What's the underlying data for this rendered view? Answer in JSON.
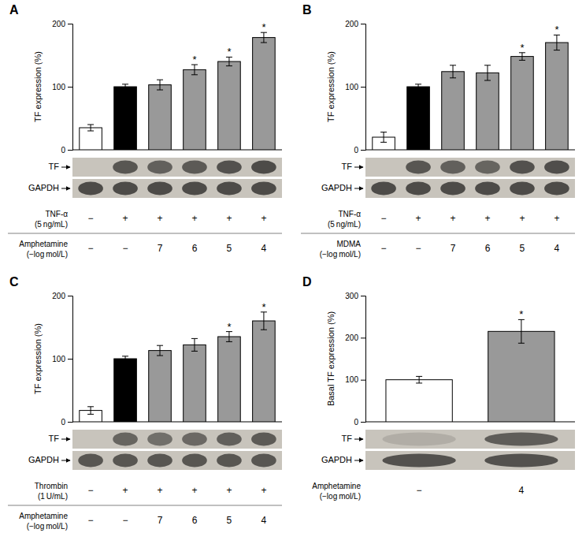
{
  "chart_data": [
    {
      "type": "bar",
      "title": "A",
      "ylabel": "TF expression (%)",
      "values": [
        35,
        100,
        103,
        127,
        140,
        178
      ],
      "errors": [
        5,
        4,
        8,
        8,
        7,
        8
      ],
      "colors": [
        "white",
        "black",
        "#999999",
        "#999999",
        "#999999",
        "#999999"
      ],
      "ylim": [
        0,
        200
      ],
      "yticks": [
        0,
        100,
        200
      ],
      "annotations": [
        null,
        null,
        null,
        "*",
        "*",
        "*"
      ],
      "rows": [
        {
          "label": [
            "TNF-α",
            "(5 ng/mL)"
          ],
          "values": [
            "−",
            "+",
            "+",
            "+",
            "+",
            "+"
          ]
        },
        {
          "label": [
            "Amphetamine",
            "(−log mol/L)"
          ],
          "values": [
            "−",
            "−",
            "7",
            "6",
            "5",
            "4"
          ]
        }
      ],
      "blots": [
        {
          "name": "TF",
          "intensities": [
            0.0,
            0.75,
            0.68,
            0.72,
            0.78,
            0.82
          ]
        },
        {
          "name": "GAPDH",
          "intensities": [
            0.82,
            0.82,
            0.82,
            0.82,
            0.82,
            0.82
          ]
        }
      ]
    },
    {
      "type": "bar",
      "title": "B",
      "ylabel": "TF expression (%)",
      "values": [
        20,
        100,
        124,
        122,
        148,
        170
      ],
      "errors": [
        8,
        4,
        10,
        12,
        6,
        12
      ],
      "colors": [
        "white",
        "black",
        "#999999",
        "#999999",
        "#999999",
        "#999999"
      ],
      "ylim": [
        0,
        200
      ],
      "yticks": [
        0,
        100,
        200
      ],
      "annotations": [
        null,
        null,
        null,
        null,
        "*",
        "*"
      ],
      "rows": [
        {
          "label": [
            "TNF-α",
            "(5 ng/mL)"
          ],
          "values": [
            "−",
            "+",
            "+",
            "+",
            "+",
            "+"
          ]
        },
        {
          "label": [
            "MDMA",
            "(−log mol/L)"
          ],
          "values": [
            "−",
            "−",
            "7",
            "6",
            "5",
            "4"
          ]
        }
      ],
      "blots": [
        {
          "name": "TF",
          "intensities": [
            0.0,
            0.75,
            0.68,
            0.65,
            0.78,
            0.8
          ]
        },
        {
          "name": "GAPDH",
          "intensities": [
            0.82,
            0.82,
            0.82,
            0.82,
            0.82,
            0.82
          ]
        }
      ]
    },
    {
      "type": "bar",
      "title": "C",
      "ylabel": "TF expression (%)",
      "values": [
        18,
        100,
        113,
        122,
        135,
        160
      ],
      "errors": [
        6,
        4,
        8,
        10,
        8,
        14
      ],
      "colors": [
        "white",
        "black",
        "#999999",
        "#999999",
        "#999999",
        "#999999"
      ],
      "ylim": [
        0,
        200
      ],
      "yticks": [
        0,
        100,
        200
      ],
      "annotations": [
        null,
        null,
        null,
        null,
        "*",
        "*"
      ],
      "rows": [
        {
          "label": [
            "Thrombin",
            "(1 U/mL)"
          ],
          "values": [
            "−",
            "+",
            "+",
            "+",
            "+",
            "+"
          ]
        },
        {
          "label": [
            "Amphetamine",
            "(−log mol/L)"
          ],
          "values": [
            "−",
            "−",
            "7",
            "6",
            "5",
            "4"
          ]
        }
      ],
      "blots": [
        {
          "name": "TF",
          "intensities": [
            0.0,
            0.65,
            0.58,
            0.62,
            0.68,
            0.72
          ]
        },
        {
          "name": "GAPDH",
          "intensities": [
            0.75,
            0.75,
            0.75,
            0.75,
            0.75,
            0.75
          ]
        }
      ]
    },
    {
      "type": "bar",
      "title": "D",
      "ylabel": "Basal TF expression (%)",
      "values": [
        100,
        215
      ],
      "errors": [
        8,
        28
      ],
      "colors": [
        "white",
        "#999999"
      ],
      "ylim": [
        0,
        300
      ],
      "yticks": [
        0,
        100,
        200,
        300
      ],
      "annotations": [
        null,
        "*"
      ],
      "rows": [
        {
          "label": [
            "Amphetamine",
            "(−log mol/L)"
          ],
          "values": [
            "−",
            "4"
          ]
        }
      ],
      "blots": [
        {
          "name": "TF",
          "intensities": [
            0.15,
            0.7
          ]
        },
        {
          "name": "GAPDH",
          "intensities": [
            0.78,
            0.78
          ]
        }
      ]
    }
  ]
}
